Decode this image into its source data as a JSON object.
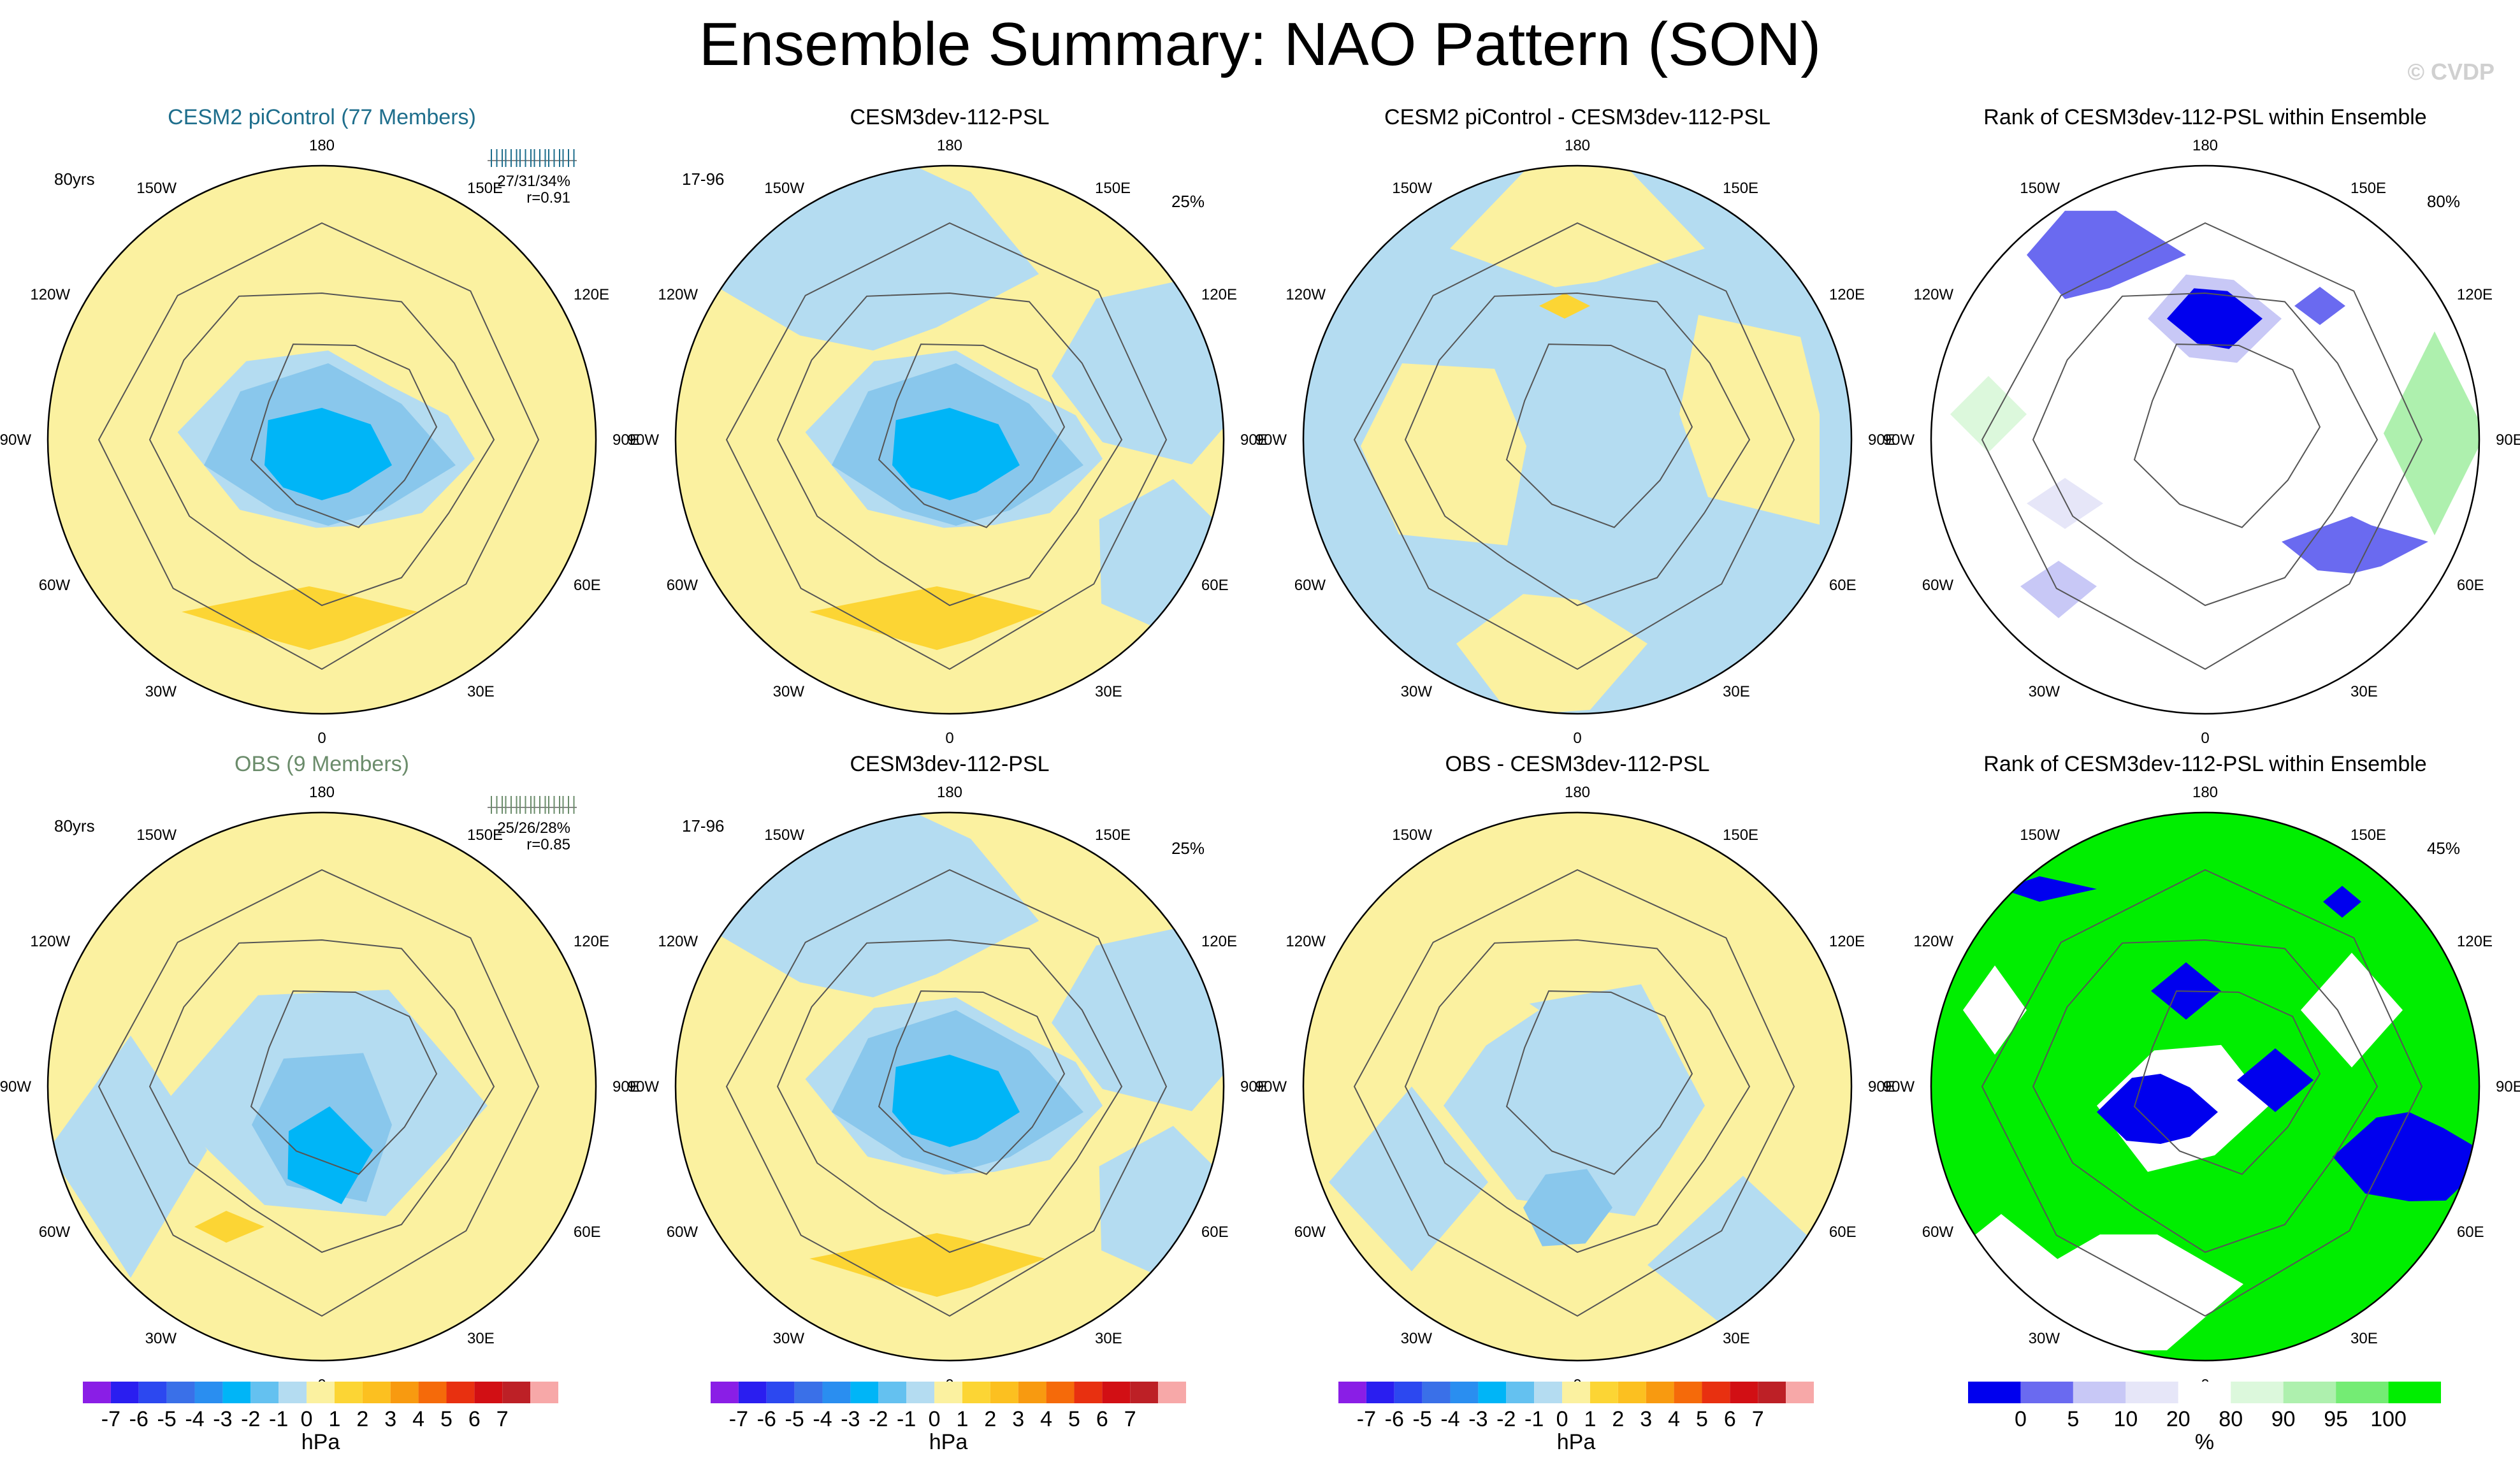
{
  "title": "Ensemble Summary: NAO Pattern (SON)",
  "watermark": "© CVDP",
  "colors": {
    "coast": "#555555",
    "ocean_blue": "#b4dcf1",
    "land_yellow": "#fbf1a0",
    "mid_blue": "#64c1f0",
    "deep_blue": "#00b5f7",
    "gold": "#fcd534",
    "pale_blue": "#89c7ec",
    "orange_gold": "#fcc020",
    "rank_blue": "#0000ee",
    "rank_med_blue": "#6a6af0",
    "rank_light_blue": "#c8c8f6",
    "rank_pale_lilac": "#e6e6f8",
    "rank_green": "#00ee00",
    "rank_light_green": "#aef0ae",
    "rank_pale_green": "#dcf8dc",
    "obs_title": "#6b8c6b",
    "cesm_title": "#1e6e8c"
  },
  "lon_labels": [
    "180",
    "150E",
    "120E",
    "90E",
    "60E",
    "30E",
    "0",
    "30W",
    "60W",
    "90W",
    "120W",
    "150W"
  ],
  "panels": [
    {
      "title": "CESM2 piControl (77 Members)",
      "left_label": "80yrs",
      "stats": "27/31/34%",
      "r": "r=0.91",
      "right_label": "",
      "title_color": "#1e6e8c",
      "variant": "ens"
    },
    {
      "title": "CESM3dev-112-PSL",
      "left_label": "17-96",
      "stats": "",
      "r": "",
      "right_label": "25%",
      "title_color": "#000000",
      "variant": "model"
    },
    {
      "title": "CESM2 piControl - CESM3dev-112-PSL",
      "left_label": "",
      "stats": "",
      "r": "",
      "right_label": "",
      "title_color": "#000000",
      "variant": "diff1"
    },
    {
      "title": "Rank of CESM3dev-112-PSL within Ensemble",
      "left_label": "",
      "stats": "",
      "r": "",
      "right_label": "80%",
      "title_color": "#000000",
      "variant": "rank1"
    },
    {
      "title": "OBS (9 Members)",
      "left_label": "80yrs",
      "stats": "25/26/28%",
      "r": "r=0.85",
      "right_label": "",
      "title_color": "#6b8c6b",
      "variant": "obs"
    },
    {
      "title": "CESM3dev-112-PSL",
      "left_label": "17-96",
      "stats": "",
      "r": "",
      "right_label": "25%",
      "title_color": "#000000",
      "variant": "model"
    },
    {
      "title": "OBS - CESM3dev-112-PSL",
      "left_label": "",
      "stats": "",
      "r": "",
      "right_label": "",
      "title_color": "#000000",
      "variant": "diff2"
    },
    {
      "title": "Rank of CESM3dev-112-PSL within Ensemble",
      "left_label": "",
      "stats": "",
      "r": "",
      "right_label": "45%",
      "title_color": "#000000",
      "variant": "rank2"
    }
  ],
  "chart_data": [
    {
      "type": "heatmap",
      "title": "Ensemble Summary: NAO Pattern (SON)",
      "projection": "polar stereographic, Northern Hemisphere",
      "colorbars": [
        {
          "name": "psl",
          "unit": "hPa",
          "tick_labels": [
            "-7",
            "-6",
            "-5",
            "-4",
            "-3",
            "-2",
            "-1",
            "0",
            "1",
            "2",
            "3",
            "4",
            "5",
            "6",
            "7"
          ],
          "colors": [
            "#8a1ee6",
            "#2a1ef0",
            "#2c48f0",
            "#3a70e8",
            "#2a8ef0",
            "#00b5f7",
            "#64c1f0",
            "#b4dcf1",
            "#fbf1a0",
            "#fcd534",
            "#fcc020",
            "#f89a10",
            "#f56a0a",
            "#e83010",
            "#d20f14",
            "#bd2026",
            "#f7a8a8"
          ]
        },
        {
          "name": "rank",
          "unit": "%",
          "tick_labels": [
            "0",
            "5",
            "10",
            "20",
            "80",
            "90",
            "95",
            "100"
          ],
          "colors": [
            "#0000ee",
            "#6a6af0",
            "#c8c8f6",
            "#e6e6f8",
            "#ffffff",
            "#dcf8dc",
            "#aef0ae",
            "#74ec74",
            "#00ee00"
          ]
        }
      ]
    }
  ]
}
